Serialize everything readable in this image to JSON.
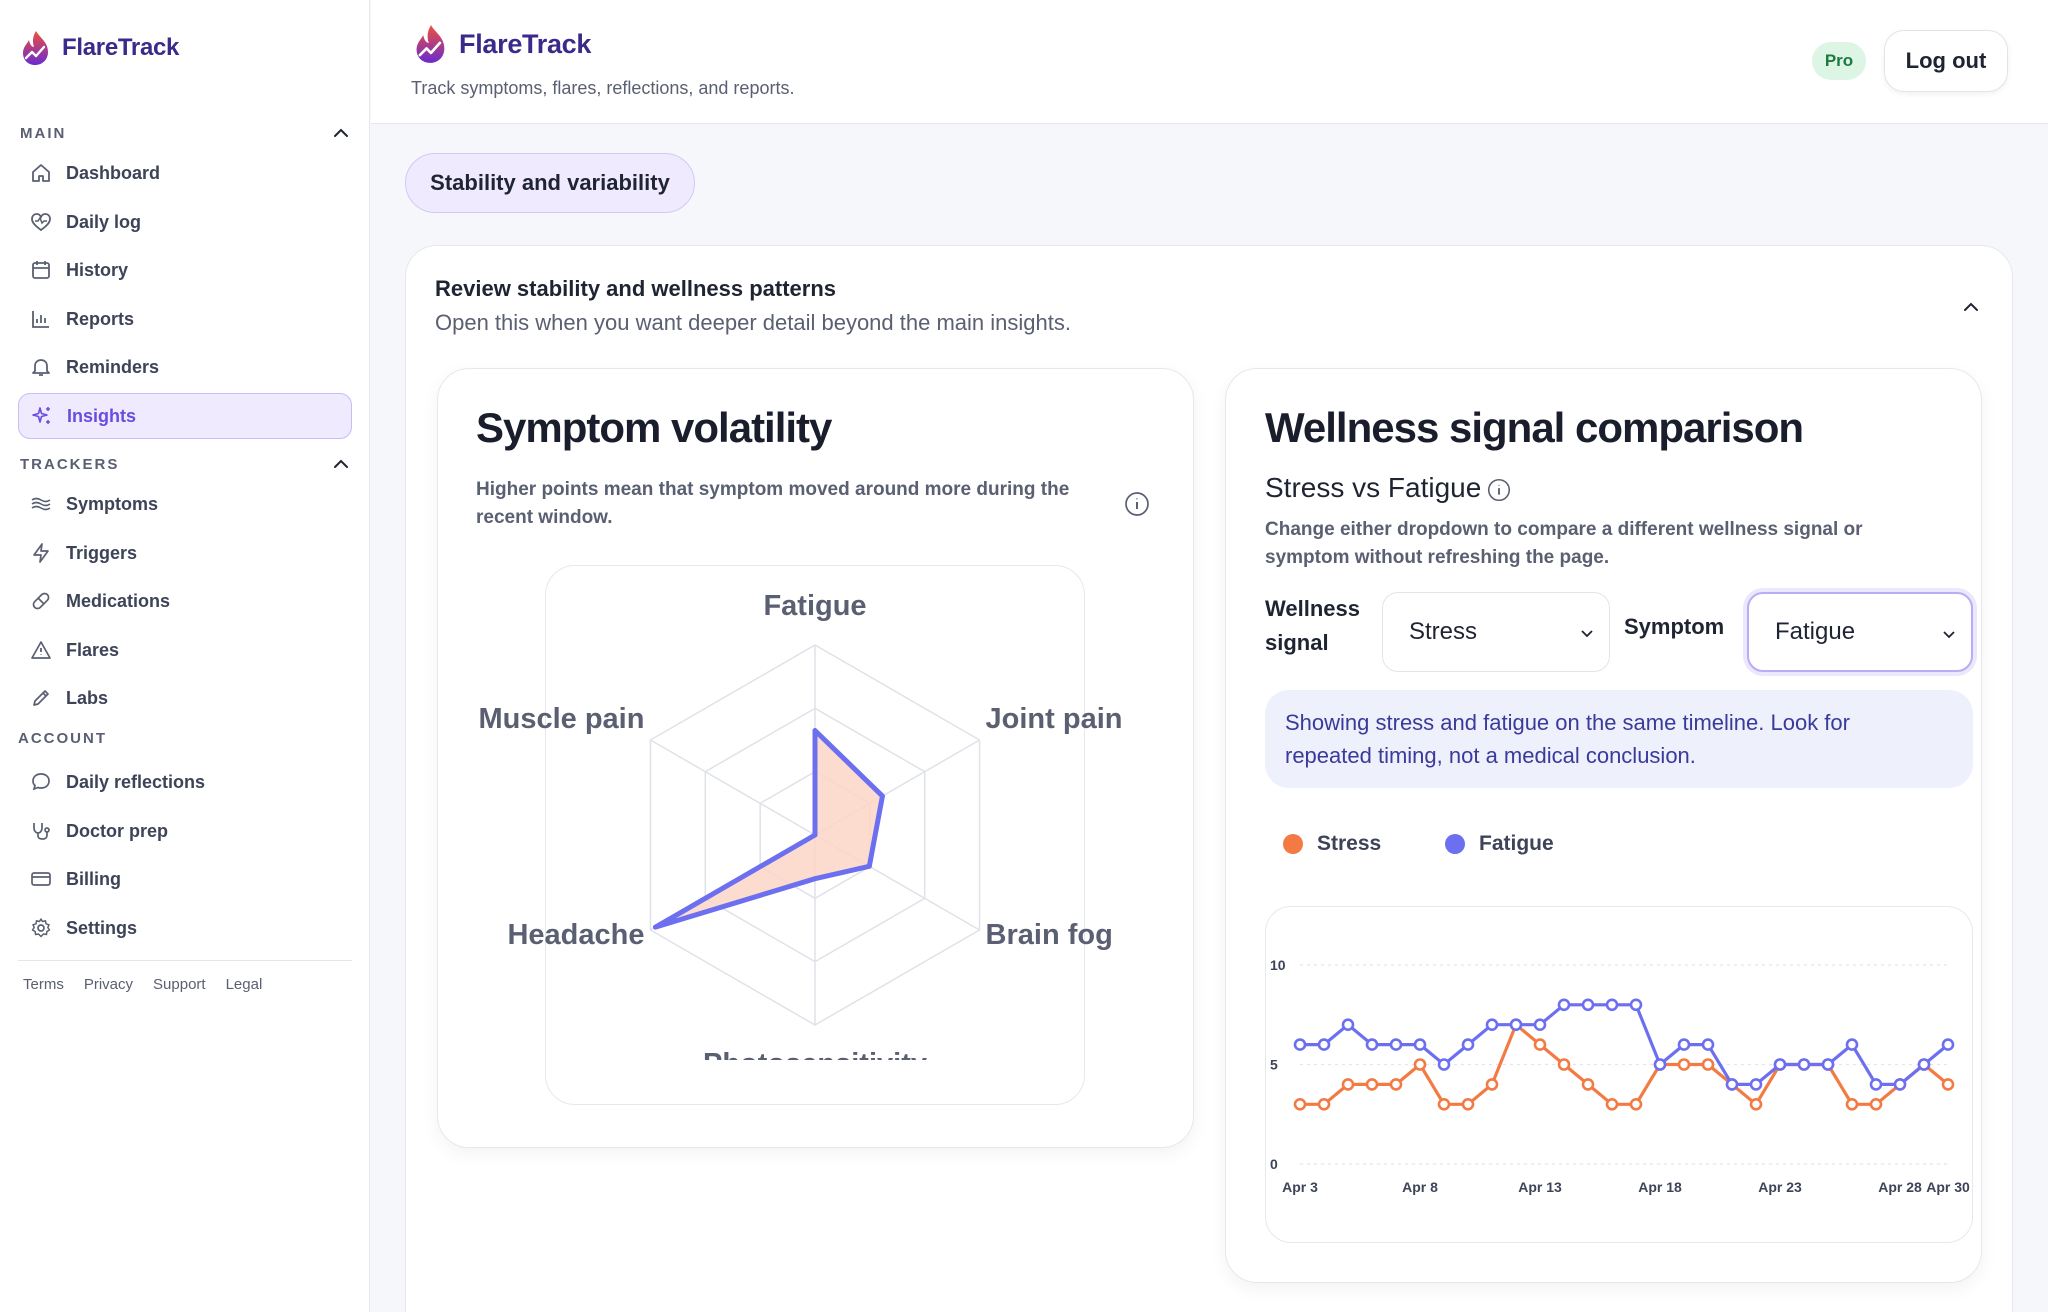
{
  "app": {
    "name": "FlareTrack",
    "tagline": "Track symptoms, flares, reflections, and reports."
  },
  "header": {
    "badge": "Pro",
    "logout_label": "Log out"
  },
  "sidebar": {
    "main_title": "MAIN",
    "main_items": [
      {
        "label": "Dashboard",
        "icon": "home-icon"
      },
      {
        "label": "Daily log",
        "icon": "heart-pulse-icon"
      },
      {
        "label": "History",
        "icon": "calendar-icon"
      },
      {
        "label": "Reports",
        "icon": "bar-chart-icon"
      },
      {
        "label": "Reminders",
        "icon": "bell-icon"
      },
      {
        "label": "Insights",
        "icon": "sparkles-icon",
        "active": true
      }
    ],
    "trackers_title": "TRACKERS",
    "tracker_items": [
      {
        "label": "Symptoms",
        "icon": "waves-icon"
      },
      {
        "label": "Triggers",
        "icon": "bolt-icon"
      },
      {
        "label": "Medications",
        "icon": "pill-icon"
      },
      {
        "label": "Flares",
        "icon": "warning-icon"
      },
      {
        "label": "Labs",
        "icon": "pencil-icon"
      }
    ],
    "account_title": "ACCOUNT",
    "account_items": [
      {
        "label": "Daily reflections",
        "icon": "chat-icon"
      },
      {
        "label": "Doctor prep",
        "icon": "stethoscope-icon"
      },
      {
        "label": "Billing",
        "icon": "credit-card-icon"
      },
      {
        "label": "Settings",
        "icon": "gear-icon"
      }
    ],
    "footer_links": [
      "Terms",
      "Privacy",
      "Support",
      "Legal"
    ]
  },
  "main": {
    "tab_label": "Stability and variability",
    "panel_title": "Review stability and wellness patterns",
    "panel_subtitle": "Open this when you want deeper detail beyond the main insights.",
    "volatility": {
      "title": "Symptom volatility",
      "description_line1": "Higher points mean that symptom moved around more during the",
      "description_line2": "recent window."
    },
    "comparison": {
      "title": "Wellness signal comparison",
      "subtitle": "Stress vs Fatigue",
      "description_line1": "Change either dropdown to compare a different wellness signal or",
      "description_line2": "symptom without refreshing the page.",
      "wellness_label_line1": "Wellness",
      "wellness_label_line2": "signal",
      "wellness_value": "Stress",
      "symptom_label": "Symptom",
      "symptom_value": "Fatigue",
      "notice_line1": "Showing stress and fatigue on the same timeline. Look for",
      "notice_line2": "repeated timing, not a medical conclusion."
    }
  },
  "chart_data": [
    {
      "type": "radar",
      "title": "Symptom volatility",
      "categories": [
        "Fatigue",
        "Joint pain",
        "Brain fog",
        "Photosensitivity",
        "Headache",
        "Muscle pain"
      ],
      "values": [
        0.55,
        0.41,
        0.33,
        0.23,
        0.97,
        0.0
      ],
      "color": "#6b6ff0",
      "fill": "#fcd6c6"
    },
    {
      "type": "line",
      "title": "Stress vs Fatigue",
      "x": [
        "Apr 3",
        "Apr 4",
        "Apr 5",
        "Apr 6",
        "Apr 7",
        "Apr 8",
        "Apr 9",
        "Apr 10",
        "Apr 11",
        "Apr 12",
        "Apr 13",
        "Apr 14",
        "Apr 15",
        "Apr 16",
        "Apr 17",
        "Apr 18",
        "Apr 19",
        "Apr 20",
        "Apr 21",
        "Apr 22",
        "Apr 23",
        "Apr 24",
        "Apr 25",
        "Apr 26",
        "Apr 27",
        "Apr 28",
        "Apr 29",
        "Apr 30"
      ],
      "x_tick_labels": [
        "Apr 3",
        "Apr 8",
        "Apr 13",
        "Apr 18",
        "Apr 23",
        "Apr 28",
        "Apr 30"
      ],
      "y_ticks": [
        0,
        5,
        10
      ],
      "ylim": [
        0,
        10
      ],
      "series": [
        {
          "name": "Stress",
          "color": "#f47a43",
          "values": [
            3,
            3,
            4,
            4,
            4,
            5,
            3,
            3,
            4,
            7,
            6,
            5,
            4,
            3,
            3,
            5,
            5,
            5,
            4,
            3,
            5,
            5,
            5,
            3,
            3,
            4,
            5,
            4
          ]
        },
        {
          "name": "Fatigue",
          "color": "#6b6ff0",
          "values": [
            6,
            6,
            7,
            6,
            6,
            6,
            5,
            6,
            7,
            7,
            7,
            8,
            8,
            8,
            8,
            5,
            6,
            6,
            4,
            4,
            5,
            5,
            5,
            6,
            4,
            4,
            5,
            6
          ]
        }
      ],
      "legend": "top-left"
    }
  ]
}
